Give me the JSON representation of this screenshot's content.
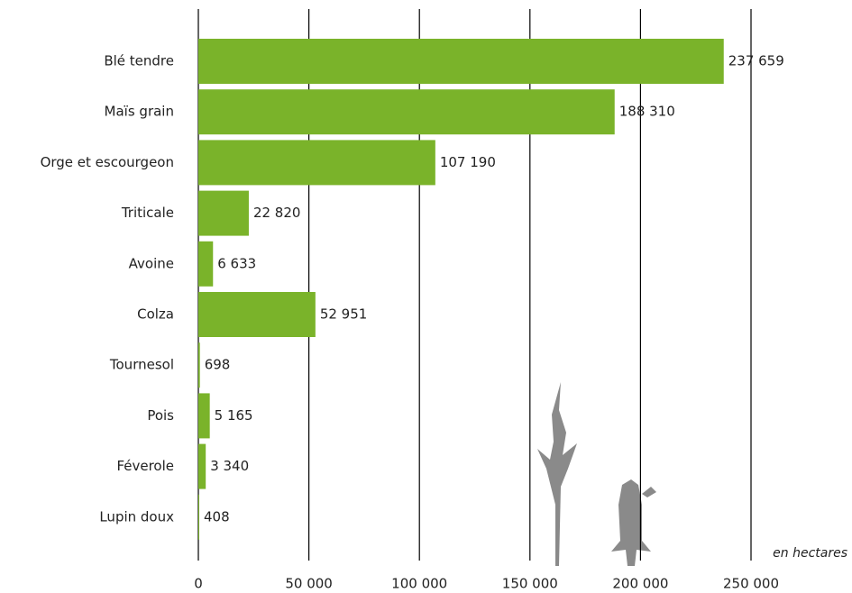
{
  "chart_data": {
    "type": "barh",
    "categories": [
      "Blé tendre",
      "Maïs grain",
      "Orge et escourgeon",
      "Triticale",
      "Avoine",
      "Colza",
      "Tournesol",
      "Pois",
      "Féverole",
      "Lupin doux"
    ],
    "values": [
      237659,
      188310,
      107190,
      22820,
      6633,
      52951,
      698,
      5165,
      3340,
      408
    ],
    "value_labels": [
      "237 659",
      "188 310",
      "107 190",
      "22 820",
      "6 633",
      "52 951",
      "698",
      "5 165",
      "3 340",
      "408"
    ],
    "color": "#7ab32a",
    "xlim": [
      0,
      250000
    ],
    "xticks": [
      0,
      {
        "value": 50000,
        "label": "50 000"
      },
      {
        "value": 100000,
        "label": "100 000"
      },
      {
        "value": 150000,
        "label": "150 000"
      },
      {
        "value": 200000,
        "label": "200 000"
      },
      {
        "value": 250000,
        "label": "250 000"
      }
    ],
    "x_label": "en hectares",
    "grid": true
  }
}
